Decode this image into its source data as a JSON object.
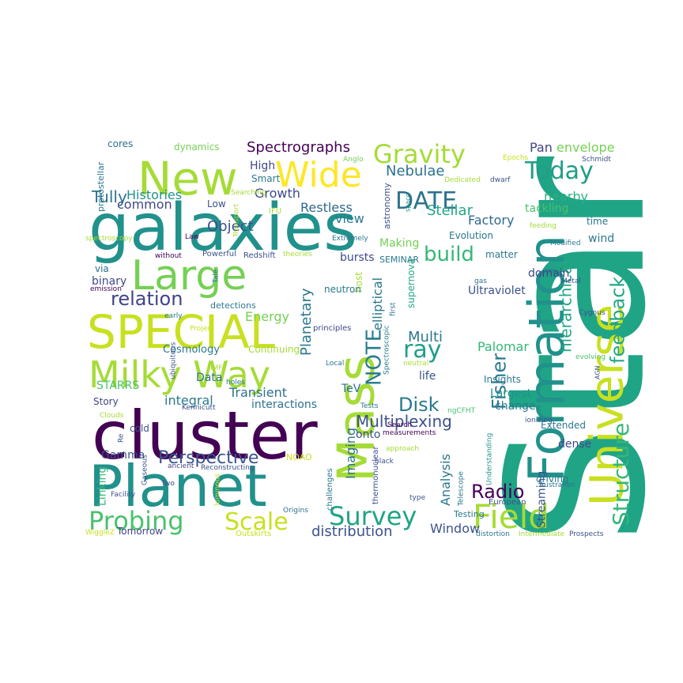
{
  "words": [
    {
      "text": "Star",
      "color": "#20a486"
    },
    {
      "text": "galaxies",
      "color": "#21918c"
    },
    {
      "text": "cluster",
      "color": "#440154"
    },
    {
      "text": "Planet",
      "color": "#21918c"
    },
    {
      "text": "Formation",
      "color": "#21918c"
    },
    {
      "text": "Universe",
      "color": "#c8e020"
    },
    {
      "text": "Mass",
      "color": "#a5db36"
    },
    {
      "text": "New",
      "color": "#a5db36"
    },
    {
      "text": "SPECIAL",
      "color": "#c8e020"
    },
    {
      "text": "Large",
      "color": "#75d054"
    },
    {
      "text": "Milky Way",
      "color": "#a5db36"
    },
    {
      "text": "Wide",
      "color": "#fde725"
    },
    {
      "text": "Field",
      "color": "#a5db36"
    },
    {
      "text": "Structure",
      "color": "#35b779"
    },
    {
      "text": "feedback",
      "color": "#22a785"
    },
    {
      "text": "Gravity",
      "color": "#a5db36"
    },
    {
      "text": "Today",
      "color": "#1f9e89"
    },
    {
      "text": "DATE",
      "color": "#2c728e"
    },
    {
      "text": "NOTE",
      "color": "#287c8e"
    },
    {
      "text": "Survey",
      "color": "#20a486"
    },
    {
      "text": "Probing",
      "color": "#4ac16d"
    },
    {
      "text": "Scale",
      "color": "#c8e020"
    },
    {
      "text": "Perspective",
      "color": "#3b528b"
    },
    {
      "text": "ray",
      "color": "#1f9e89"
    },
    {
      "text": "Disk",
      "color": "#2a788e"
    },
    {
      "text": "relation",
      "color": "#414487"
    },
    {
      "text": "Multiplexing",
      "color": "#3b528b"
    },
    {
      "text": "Fisher",
      "color": "#2a788e"
    },
    {
      "text": "Tully",
      "color": "#2c728e"
    },
    {
      "text": "build",
      "color": "#35b779"
    },
    {
      "text": "Radio",
      "color": "#440154"
    },
    {
      "text": "hierarchical",
      "color": "#22a785"
    },
    {
      "text": "Spectrographs",
      "color": "#440154"
    },
    {
      "text": "Nebulae",
      "color": "#2c728e"
    },
    {
      "text": "Planetary",
      "color": "#2a788e"
    },
    {
      "text": "elliptical",
      "color": "#2a788e"
    },
    {
      "text": "Multi",
      "color": "#2a788e"
    },
    {
      "text": "Restless",
      "color": "#31688e"
    },
    {
      "text": "Stellar",
      "color": "#22a785"
    },
    {
      "text": "Factory",
      "color": "#31688e"
    },
    {
      "text": "Histories",
      "color": "#21918c"
    },
    {
      "text": "Object",
      "color": "#3b528b"
    },
    {
      "text": "Growth",
      "color": "#3e4989"
    },
    {
      "text": "nearby",
      "color": "#2ab07f"
    },
    {
      "text": "common",
      "color": "#3e4989"
    },
    {
      "text": "view",
      "color": "#287c8e"
    },
    {
      "text": "Pan",
      "color": "#414487"
    },
    {
      "text": "envelope",
      "color": "#75d054"
    },
    {
      "text": "Palomar",
      "color": "#35b779"
    },
    {
      "text": "Imaging",
      "color": "#2c728e"
    },
    {
      "text": "Analysis",
      "color": "#2a788e"
    },
    {
      "text": "Window",
      "color": "#3b528b"
    },
    {
      "text": "distribution",
      "color": "#3b528b"
    },
    {
      "text": "Transient",
      "color": "#2c728e"
    },
    {
      "text": "integral",
      "color": "#2a788e"
    },
    {
      "text": "Energy",
      "color": "#75d054"
    },
    {
      "text": "Linking",
      "color": "#35b779"
    },
    {
      "text": "Gamma",
      "color": "#3b528b"
    },
    {
      "text": "Streaming",
      "color": "#3b528b"
    },
    {
      "text": "Largest",
      "color": "#21918c"
    },
    {
      "text": "Ultraviolet",
      "color": "#3b528b"
    },
    {
      "text": "dynamics",
      "color": "#75d054"
    },
    {
      "text": "cores",
      "color": "#2c728e"
    },
    {
      "text": "High",
      "color": "#3e4989"
    },
    {
      "text": "Smart",
      "color": "#2a788e"
    },
    {
      "text": "Low",
      "color": "#3b528b"
    },
    {
      "text": "IFU",
      "color": "#a5db36"
    },
    {
      "text": "protostellar",
      "color": "#2a788e"
    },
    {
      "text": "spectroscopy",
      "color": "#a5db36"
    },
    {
      "text": "Searching",
      "color": "#a5db36"
    },
    {
      "text": "Transport",
      "color": "#a5db36"
    },
    {
      "text": "astronomy",
      "color": "#3b528b"
    },
    {
      "text": "space",
      "color": "#21918c"
    },
    {
      "text": "Anglo",
      "color": "#75d054"
    },
    {
      "text": "dwarf",
      "color": "#3b528b"
    },
    {
      "text": "Dedicated",
      "color": "#a5db36"
    },
    {
      "text": "Epochs",
      "color": "#c8e020"
    },
    {
      "text": "Schmidt",
      "color": "#3b528b"
    },
    {
      "text": "tackling",
      "color": "#4ac16d"
    },
    {
      "text": "time",
      "color": "#2c728e"
    },
    {
      "text": "wind",
      "color": "#2a788e"
    },
    {
      "text": "feeding",
      "color": "#a5db36"
    },
    {
      "text": "Modified",
      "color": "#2a788e"
    },
    {
      "text": "Metal",
      "color": "#3b528b"
    },
    {
      "text": "gas",
      "color": "#2c728e"
    },
    {
      "text": "Cygnus",
      "color": "#3b528b"
    },
    {
      "text": "evolving",
      "color": "#4ac16d"
    },
    {
      "text": "AGN",
      "color": "#3b528b"
    },
    {
      "text": "Law",
      "color": "#440154"
    },
    {
      "text": "without",
      "color": "#440154"
    },
    {
      "text": "Powerful",
      "color": "#3b528b"
    },
    {
      "text": "Redshift",
      "color": "#3b528b"
    },
    {
      "text": "theories",
      "color": "#a5db36"
    },
    {
      "text": "Extremely",
      "color": "#2a788e"
    },
    {
      "text": "Tale",
      "color": "#2c728e"
    },
    {
      "text": "emission",
      "color": "#440154"
    },
    {
      "text": "via",
      "color": "#2c728e"
    },
    {
      "text": "binary",
      "color": "#3e4989"
    },
    {
      "text": "detections",
      "color": "#2a788e"
    },
    {
      "text": "bursts",
      "color": "#3e4989"
    },
    {
      "text": "SEMINAR",
      "color": "#2a788e"
    },
    {
      "text": "host",
      "color": "#a5db36"
    },
    {
      "text": "Making",
      "color": "#75d054"
    },
    {
      "text": "Evolution",
      "color": "#2a788e"
    },
    {
      "text": "matter",
      "color": "#2a788e"
    },
    {
      "text": "domain",
      "color": "#3e4989"
    },
    {
      "text": "neutron",
      "color": "#2a788e"
    },
    {
      "text": "supernova",
      "color": "#22a785"
    },
    {
      "text": "principles",
      "color": "#3e4989"
    },
    {
      "text": "Spectroscopic",
      "color": "#2a788e"
    },
    {
      "text": "first",
      "color": "#2c728e"
    },
    {
      "text": "Project",
      "color": "#c8e020"
    },
    {
      "text": "early",
      "color": "#2a788e"
    },
    {
      "text": "Cosmology",
      "color": "#2a788e"
    },
    {
      "text": "Continuing",
      "color": "#a5db36"
    },
    {
      "text": "ubiquitous",
      "color": "#3b528b"
    },
    {
      "text": "IMF",
      "color": "#a5db36"
    },
    {
      "text": "Local",
      "color": "#2a788e"
    },
    {
      "text": "neutral",
      "color": "#a5db36"
    },
    {
      "text": "Data",
      "color": "#2c728e"
    },
    {
      "text": "holes",
      "color": "#2a788e"
    },
    {
      "text": "STARRS",
      "color": "#4ac16d"
    },
    {
      "text": "Clouds",
      "color": "#a5db36"
    },
    {
      "text": "Story",
      "color": "#414487"
    },
    {
      "text": "Kennicutt",
      "color": "#3b528b"
    },
    {
      "text": "Tests",
      "color": "#2a788e"
    },
    {
      "text": "interactions",
      "color": "#2c728e"
    },
    {
      "text": "TeV",
      "color": "#2c728e"
    },
    {
      "text": "life",
      "color": "#3b528b"
    },
    {
      "text": "change",
      "color": "#2a788e"
    },
    {
      "text": "Insights",
      "color": "#2a788e"
    },
    {
      "text": "ionizing",
      "color": "#3b528b"
    },
    {
      "text": "ngCFHT",
      "color": "#4ac16d"
    },
    {
      "text": "cold",
      "color": "#3b528b"
    },
    {
      "text": "Re",
      "color": "#3b528b"
    },
    {
      "text": "onto",
      "color": "#3b528b"
    },
    {
      "text": "measurements",
      "color": "#440154"
    },
    {
      "text": "Extended",
      "color": "#2a788e"
    },
    {
      "text": "Understanding",
      "color": "#21918c"
    },
    {
      "text": "dense",
      "color": "#3e4989"
    },
    {
      "text": "Search",
      "color": "#440154"
    },
    {
      "text": "approach",
      "color": "#a5db36"
    },
    {
      "text": "black",
      "color": "#3b528b"
    },
    {
      "text": "NOAO",
      "color": "#c8e020"
    },
    {
      "text": "thermonuclear",
      "color": "#3b528b"
    },
    {
      "text": "ancient",
      "color": "#414487"
    },
    {
      "text": "Reconstructing",
      "color": "#3b528b"
    },
    {
      "text": "Gaseous",
      "color": "#3b528b"
    },
    {
      "text": "Two",
      "color": "#3b528b"
    },
    {
      "text": "Facility",
      "color": "#3b528b"
    },
    {
      "text": "luminous",
      "color": "#c8e020"
    },
    {
      "text": "challenges",
      "color": "#2a788e"
    },
    {
      "text": "Origins",
      "color": "#2c728e"
    },
    {
      "text": "Telescope",
      "color": "#2a788e"
    },
    {
      "text": "type",
      "color": "#3b528b"
    },
    {
      "text": "Testing",
      "color": "#2a788e"
    },
    {
      "text": "Australian",
      "color": "#2a788e"
    },
    {
      "text": "European",
      "color": "#3b528b"
    },
    {
      "text": "driving",
      "color": "#2a788e"
    },
    {
      "text": "Tomorrow",
      "color": "#414487"
    },
    {
      "text": "WiggleZ",
      "color": "#c8e020"
    },
    {
      "text": "Outskirts",
      "color": "#c8e020"
    },
    {
      "text": "distortion",
      "color": "#2a788e"
    },
    {
      "text": "Intermediate",
      "color": "#a5db36"
    },
    {
      "text": "Prospects",
      "color": "#3b528b"
    }
  ]
}
